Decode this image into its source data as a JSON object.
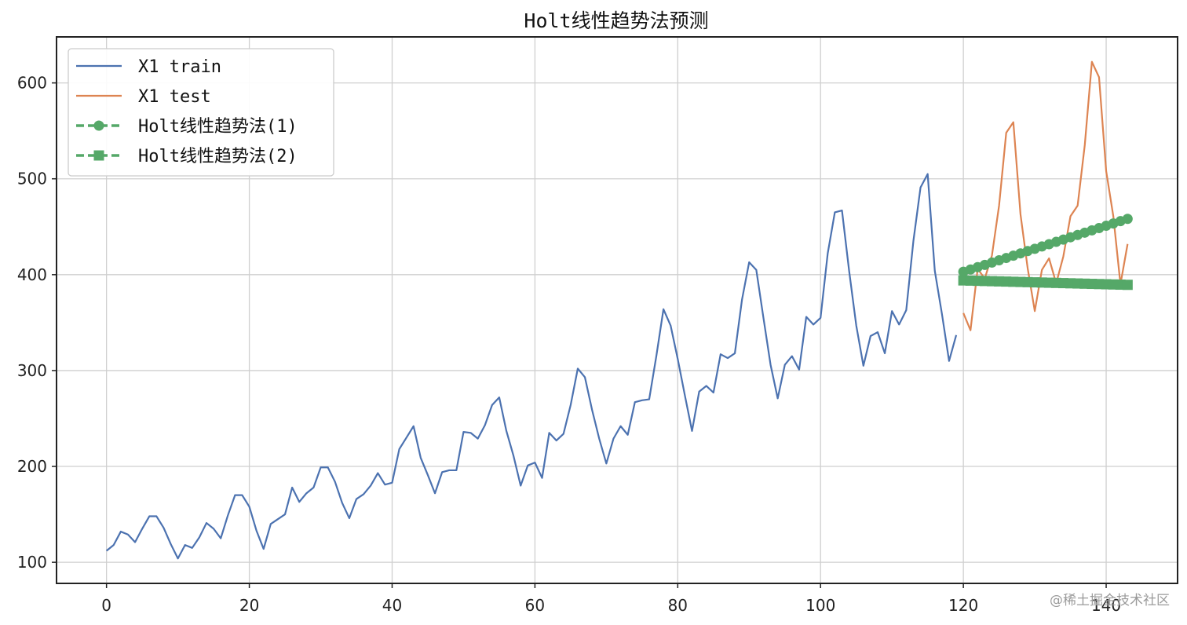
{
  "chart_data": {
    "type": "line",
    "title": "Holt线性趋势法预测",
    "xlabel": "",
    "ylabel": "",
    "xlim": [
      -7,
      150
    ],
    "ylim": [
      78,
      648
    ],
    "x_ticks": [
      0,
      20,
      40,
      60,
      80,
      100,
      120,
      140
    ],
    "y_ticks": [
      100,
      200,
      300,
      400,
      500,
      600
    ],
    "grid": true,
    "legend_position": "top-left",
    "series": [
      {
        "name": "X1 train",
        "color": "#4c72b0",
        "style": "solid",
        "marker": "none",
        "x_start": 0,
        "values": [
          112,
          118,
          132,
          129,
          121,
          135,
          148,
          148,
          136,
          119,
          104,
          118,
          115,
          126,
          141,
          135,
          125,
          149,
          170,
          170,
          158,
          133,
          114,
          140,
          145,
          150,
          178,
          163,
          172,
          178,
          199,
          199,
          184,
          162,
          146,
          166,
          171,
          180,
          193,
          181,
          183,
          218,
          230,
          242,
          209,
          191,
          172,
          194,
          196,
          196,
          236,
          235,
          229,
          243,
          264,
          272,
          237,
          211,
          180,
          201,
          204,
          188,
          235,
          227,
          234,
          264,
          302,
          293,
          259,
          229,
          203,
          229,
          242,
          233,
          267,
          269,
          270,
          315,
          364,
          347,
          312,
          274,
          237,
          278,
          284,
          277,
          317,
          313,
          318,
          374,
          413,
          405,
          355,
          306,
          271,
          306,
          315,
          301,
          356,
          348,
          355,
          422,
          465,
          467,
          404,
          347,
          305,
          336,
          340,
          318,
          362,
          348,
          363,
          435,
          491,
          505,
          404,
          359,
          310,
          337
        ]
      },
      {
        "name": "X1 test",
        "color": "#dd8452",
        "style": "solid",
        "marker": "none",
        "x_start": 120,
        "values": [
          360,
          342,
          406,
          396,
          420,
          472,
          548,
          559,
          463,
          407,
          362,
          405,
          417,
          391,
          419,
          461,
          472,
          535,
          622,
          606,
          508,
          461,
          390,
          432
        ]
      },
      {
        "name": "Holt线性趋势法(1)",
        "color": "#55a868",
        "style": "dashed",
        "marker": "circle",
        "x_start": 120,
        "values": [
          403,
          405.4,
          407.8,
          410.2,
          412.6,
          415,
          417.4,
          419.8,
          422.2,
          424.6,
          427,
          429.4,
          431.8,
          434.2,
          436.6,
          439,
          441.4,
          443.8,
          446.2,
          448.6,
          451,
          453.4,
          455.8,
          458.2
        ]
      },
      {
        "name": "Holt线性趋势法(2)",
        "color": "#55a868",
        "style": "dashed",
        "marker": "square",
        "x_start": 120,
        "values": [
          394,
          393.8,
          393.6,
          393.4,
          393.2,
          393,
          392.8,
          392.6,
          392.4,
          392.2,
          392,
          391.8,
          391.6,
          391.4,
          391.2,
          391,
          390.8,
          390.6,
          390.4,
          390.2,
          390,
          389.8,
          389.6,
          389.4
        ]
      }
    ]
  },
  "watermark": "@稀土掘金技术社区"
}
